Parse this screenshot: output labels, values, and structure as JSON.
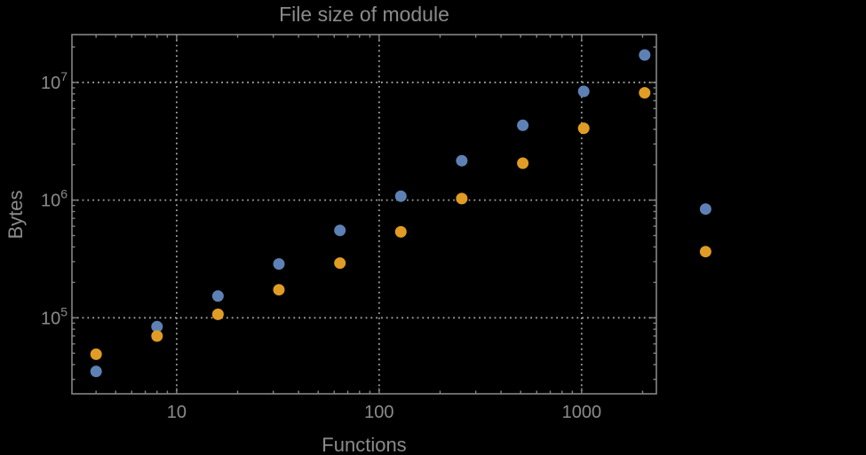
{
  "chart_data": {
    "type": "scatter",
    "title": "File size of module",
    "xlabel": "Functions",
    "ylabel": "Bytes",
    "x_scale": "log",
    "y_scale": "log",
    "xlim": [
      3.04,
      2340
    ],
    "ylim": [
      22600,
      25500000
    ],
    "grid": {
      "style": "dotted",
      "x_values": [
        10,
        100,
        1000
      ],
      "y_values": [
        100000,
        1000000,
        10000000
      ]
    },
    "legend": "none",
    "x": [
      4,
      8,
      16,
      32,
      64,
      128,
      256,
      512,
      1024,
      2048,
      4096
    ],
    "series": [
      {
        "name": "blue-series",
        "color": "#5e81b5",
        "values": [
          35000,
          84000,
          153000,
          287000,
          553000,
          1080000,
          2160000,
          4320000,
          8400000,
          17100000,
          840000
        ]
      },
      {
        "name": "orange-series",
        "color": "#e09c24",
        "values": [
          49000,
          70000,
          107000,
          173000,
          292000,
          537000,
          1030000,
          2060000,
          4080000,
          8170000,
          365000
        ]
      }
    ],
    "x_ticks": [
      {
        "value": 10,
        "label": "10"
      },
      {
        "value": 100,
        "label": "100"
      },
      {
        "value": 1000,
        "label": "1000"
      }
    ],
    "y_ticks": [
      {
        "value": 100000,
        "base": "10",
        "exponent": "5"
      },
      {
        "value": 1000000,
        "base": "10",
        "exponent": "6"
      },
      {
        "value": 10000000,
        "base": "10",
        "exponent": "7"
      }
    ],
    "colors": {
      "background": "#000000",
      "frame": "#848484",
      "gridline": "#a2a2a2",
      "text": "#8b8b8b"
    }
  }
}
